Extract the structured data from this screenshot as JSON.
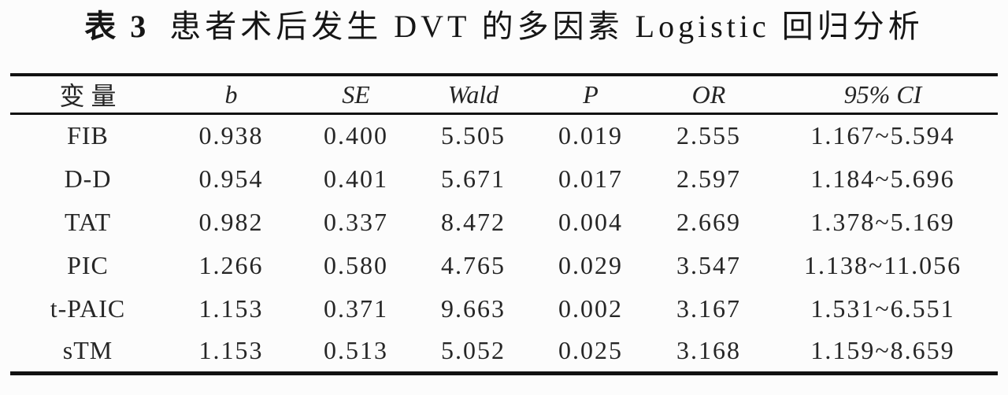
{
  "caption": {
    "label": "表 3",
    "title": "患者术后发生 DVT 的多因素 Logistic 回归分析"
  },
  "table": {
    "headers": {
      "variable": "变量",
      "b": "b",
      "se": "SE",
      "wald": "Wald",
      "p": "P",
      "or": "OR",
      "ci": "95% CI"
    },
    "rows": [
      {
        "variable": "FIB",
        "b": "0.938",
        "se": "0.400",
        "wald": "5.505",
        "p": "0.019",
        "or": "2.555",
        "ci": "1.167~5.594"
      },
      {
        "variable": "D-D",
        "b": "0.954",
        "se": "0.401",
        "wald": "5.671",
        "p": "0.017",
        "or": "2.597",
        "ci": "1.184~5.696"
      },
      {
        "variable": "TAT",
        "b": "0.982",
        "se": "0.337",
        "wald": "8.472",
        "p": "0.004",
        "or": "2.669",
        "ci": "1.378~5.169"
      },
      {
        "variable": "PIC",
        "b": "1.266",
        "se": "0.580",
        "wald": "4.765",
        "p": "0.029",
        "or": "3.547",
        "ci": "1.138~11.056"
      },
      {
        "variable": "t-PAIC",
        "b": "1.153",
        "se": "0.371",
        "wald": "9.663",
        "p": "0.002",
        "or": "3.167",
        "ci": "1.531~6.551"
      },
      {
        "variable": "sTM",
        "b": "1.153",
        "se": "0.513",
        "wald": "5.052",
        "p": "0.025",
        "or": "3.168",
        "ci": "1.159~8.659"
      }
    ]
  },
  "colors": {
    "rule": "#111111",
    "text": "#242424",
    "background": "#fcfcfc"
  }
}
